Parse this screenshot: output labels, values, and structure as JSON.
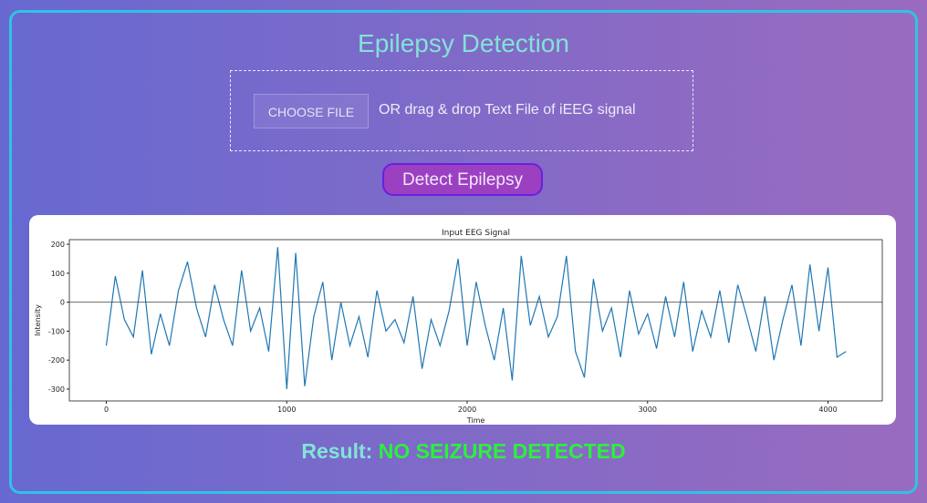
{
  "header": {
    "title": "Epilepsy Detection"
  },
  "upload": {
    "button": "CHOOSE FILE",
    "hint": "OR drag & drop Text File of iEEG signal"
  },
  "action": {
    "button": "Detect Epilepsy"
  },
  "chart_data": {
    "type": "line",
    "title": "Input EEG Signal",
    "xlabel": "Time",
    "ylabel": "Intensity",
    "x": [
      0,
      50,
      100,
      150,
      200,
      250,
      300,
      350,
      400,
      450,
      500,
      550,
      600,
      650,
      700,
      750,
      800,
      850,
      900,
      950,
      1000,
      1050,
      1100,
      1150,
      1200,
      1250,
      1300,
      1350,
      1400,
      1450,
      1500,
      1550,
      1600,
      1650,
      1700,
      1750,
      1800,
      1850,
      1900,
      1950,
      2000,
      2050,
      2100,
      2150,
      2200,
      2250,
      2300,
      2350,
      2400,
      2450,
      2500,
      2550,
      2600,
      2650,
      2700,
      2750,
      2800,
      2850,
      2900,
      2950,
      3000,
      3050,
      3100,
      3150,
      3200,
      3250,
      3300,
      3350,
      3400,
      3450,
      3500,
      3550,
      3600,
      3650,
      3700,
      3750,
      3800,
      3850,
      3900,
      3950,
      4000,
      4050,
      4100
    ],
    "series": [
      {
        "color": "#1f77b4",
        "values": [
          -150,
          90,
          -60,
          -120,
          110,
          -180,
          -40,
          -150,
          40,
          140,
          -20,
          -120,
          60,
          -60,
          -150,
          110,
          -100,
          -20,
          -170,
          190,
          -300,
          170,
          -290,
          -50,
          70,
          -200,
          0,
          -150,
          -50,
          -190,
          40,
          -100,
          -60,
          -140,
          20,
          -230,
          -60,
          -150,
          -30,
          150,
          -150,
          70,
          -80,
          -200,
          -20,
          -270,
          160,
          -80,
          20,
          -120,
          -50,
          160,
          -170,
          -260,
          80,
          -100,
          -20,
          -190,
          40,
          -110,
          -40,
          -160,
          20,
          -120,
          70,
          -170,
          -30,
          -120,
          40,
          -140,
          60,
          -50,
          -170,
          20,
          -200,
          -60,
          60,
          -150,
          130,
          -100,
          120,
          -190,
          -170
        ]
      }
    ],
    "reference_line": 0,
    "xlim": [
      -204.8,
      4300.8
    ],
    "ylim": [
      -341,
      216
    ],
    "xticks": [
      0,
      1000,
      2000,
      3000,
      4000
    ],
    "yticks": [
      -300,
      -200,
      -100,
      0,
      100,
      200
    ]
  },
  "result": {
    "label": "Result:",
    "value": "NO SEIZURE DETECTED"
  }
}
